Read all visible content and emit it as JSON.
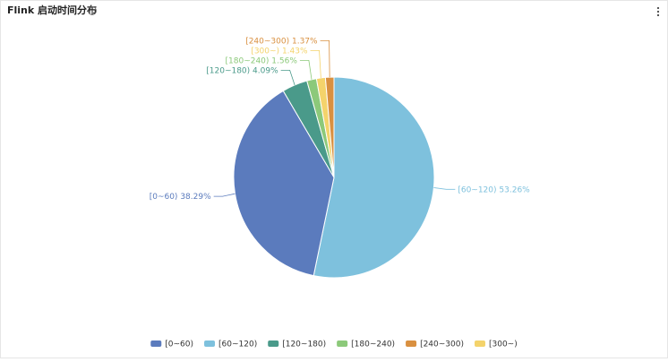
{
  "chart_data": {
    "type": "pie",
    "title": "Flink 启动时间分布",
    "categories": [
      "[0~60)",
      "[60~120)",
      "[120~180)",
      "[180~240)",
      "[240~300)",
      "[300~)"
    ],
    "values": [
      38.29,
      53.26,
      4.09,
      1.56,
      1.37,
      1.43
    ],
    "value_labels": [
      "38.29%",
      "53.26%",
      "4.09%",
      "1.56%",
      "1.37%",
      "1.43%"
    ],
    "colors": [
      "#5b7bbd",
      "#7ec1dd",
      "#4a9a8a",
      "#8cc97a",
      "#d99040",
      "#f4d36b"
    ],
    "legend": "bottom"
  }
}
